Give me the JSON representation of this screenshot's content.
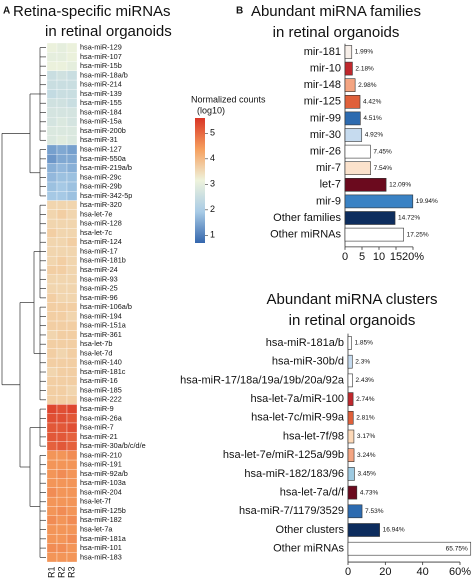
{
  "chart_data": [
    {
      "type": "heatmap",
      "panel_label": "A",
      "title": [
        "Retina-specific miRNAs",
        "in retinal organoids"
      ],
      "rows": [
        "hsa-miR-129",
        "hsa-miR-107",
        "hsa-miR-15b",
        "hsa-miR-18a/b",
        "hsa-miR-214",
        "hsa-miR-139",
        "hsa-miR-155",
        "hsa-miR-184",
        "hsa-miR-15a",
        "hsa-miR-200b",
        "hsa-miR-31",
        "hsa-miR-127",
        "hsa-miR-550a",
        "hsa-miR-219a/b",
        "hsa-miR-29c",
        "hsa-miR-29b",
        "hsa-miR-342-5p",
        "hsa-miR-320",
        "hsa-let-7e",
        "hsa-miR-128",
        "hsa-let-7c",
        "hsa-miR-124",
        "hsa-miR-17",
        "hsa-miR-181b",
        "hsa-miR-24",
        "hsa-miR-93",
        "hsa-miR-25",
        "hsa-miR-96",
        "hsa-miR-106a/b",
        "hsa-miR-194",
        "hsa-miR-151a",
        "hsa-miR-361",
        "hsa-let-7b",
        "hsa-let-7d",
        "hsa-miR-140",
        "hsa-miR-181c",
        "hsa-miR-16",
        "hsa-miR-185",
        "hsa-miR-222",
        "hsa-miR-9",
        "hsa-miR-26a",
        "hsa-miR-7",
        "hsa-miR-21",
        "hsa-miR-30a/b/c/d/e",
        "hsa-miR-210",
        "hsa-miR-191",
        "hsa-miR-92a/b",
        "hsa-miR-103a",
        "hsa-miR-204",
        "hsa-let-7f",
        "hsa-miR-125b",
        "hsa-miR-182",
        "hsa-let-7a",
        "hsa-miR-181a",
        "hsa-miR-101",
        "hsa-miR-183"
      ],
      "columns": [
        "R1",
        "R2",
        "R3"
      ],
      "values": [
        [
          3.1,
          3.0,
          3.1
        ],
        [
          3.0,
          3.0,
          3.1
        ],
        [
          3.1,
          3.1,
          3.0
        ],
        [
          2.5,
          2.6,
          2.5
        ],
        [
          2.5,
          2.5,
          2.5
        ],
        [
          2.4,
          2.5,
          2.5
        ],
        [
          2.6,
          2.6,
          2.5
        ],
        [
          2.7,
          2.7,
          2.7
        ],
        [
          2.7,
          2.8,
          2.7
        ],
        [
          2.8,
          2.8,
          2.8
        ],
        [
          2.8,
          2.9,
          2.8
        ],
        [
          1.4,
          1.5,
          1.4
        ],
        [
          1.3,
          1.5,
          1.5
        ],
        [
          1.6,
          1.7,
          1.6
        ],
        [
          1.7,
          1.8,
          1.8
        ],
        [
          1.8,
          1.9,
          1.8
        ],
        [
          1.9,
          1.9,
          1.8
        ],
        [
          3.6,
          3.6,
          3.6
        ],
        [
          3.6,
          3.7,
          3.6
        ],
        [
          3.6,
          3.6,
          3.6
        ],
        [
          3.7,
          3.6,
          3.6
        ],
        [
          3.6,
          3.6,
          3.7
        ],
        [
          3.6,
          3.6,
          3.6
        ],
        [
          3.6,
          3.7,
          3.6
        ],
        [
          3.7,
          3.7,
          3.6
        ],
        [
          3.6,
          3.6,
          3.6
        ],
        [
          3.6,
          3.6,
          3.6
        ],
        [
          3.7,
          3.6,
          3.6
        ],
        [
          3.7,
          3.7,
          3.7
        ],
        [
          3.7,
          3.7,
          3.6
        ],
        [
          3.7,
          3.7,
          3.7
        ],
        [
          3.6,
          3.7,
          3.7
        ],
        [
          3.7,
          3.7,
          3.7
        ],
        [
          3.7,
          3.6,
          3.7
        ],
        [
          3.7,
          3.7,
          3.7
        ],
        [
          3.6,
          3.7,
          3.7
        ],
        [
          3.7,
          3.7,
          3.7
        ],
        [
          3.7,
          3.7,
          3.6
        ],
        [
          3.7,
          3.7,
          3.7
        ],
        [
          5.4,
          5.3,
          5.4
        ],
        [
          5.3,
          5.3,
          5.2
        ],
        [
          5.2,
          5.2,
          5.3
        ],
        [
          5.2,
          5.2,
          5.1
        ],
        [
          5.1,
          5.2,
          5.1
        ],
        [
          4.5,
          4.5,
          4.6
        ],
        [
          4.5,
          4.5,
          4.5
        ],
        [
          4.5,
          4.6,
          4.5
        ],
        [
          4.5,
          4.5,
          4.5
        ],
        [
          4.6,
          4.5,
          4.5
        ],
        [
          4.5,
          4.5,
          4.5
        ],
        [
          4.5,
          4.6,
          4.5
        ],
        [
          4.6,
          4.5,
          4.6
        ],
        [
          4.5,
          4.5,
          4.5
        ],
        [
          4.5,
          4.5,
          4.6
        ],
        [
          4.6,
          4.6,
          4.5
        ],
        [
          4.5,
          4.5,
          4.5
        ]
      ],
      "colorbar_title": [
        "Normalized counts",
        "(log10)"
      ],
      "zlim": [
        0.7,
        5.6
      ],
      "zticks": [
        1,
        2,
        3,
        4,
        5
      ],
      "colors": [
        "#3466ad",
        "#a8cbe6",
        "#eef3dc",
        "#f6a05e",
        "#d93526"
      ]
    },
    {
      "type": "barh",
      "panel_label": "B",
      "title": [
        "Abundant miRNA families",
        "in retinal organoids"
      ],
      "categories": [
        "mir-181",
        "mir-10",
        "mir-148",
        "mir-125",
        "mir-99",
        "mir-30",
        "mir-26",
        "mir-7",
        "let-7",
        "mir-9",
        "Other families",
        "Other miRNAs"
      ],
      "values": [
        1.99,
        2.18,
        2.98,
        4.42,
        4.51,
        4.92,
        7.45,
        7.54,
        12.09,
        19.94,
        14.72,
        17.25
      ],
      "value_labels": [
        "1.99%",
        "2.18%",
        "2.98%",
        "4.42%",
        "4.51%",
        "4.92%",
        "7.45%",
        "7.54%",
        "12.09%",
        "19.94%",
        "14.72%",
        "17.25%"
      ],
      "colors": [
        "#f7efe9",
        "#c0282d",
        "#f4a582",
        "#e0603a",
        "#2d6bb0",
        "#c6dbef",
        "#ffffff",
        "#fbe2cc",
        "#6b0a1e",
        "#3a82c4",
        "#0d2d5e",
        "#ffffff"
      ],
      "xlim": [
        0,
        20
      ],
      "xticks": [
        0,
        5,
        10,
        15,
        {
          "value": 20,
          "label": "20%"
        }
      ]
    },
    {
      "type": "barh",
      "title": [
        "Abundant miRNA clusters",
        "in retinal organoids"
      ],
      "categories": [
        "hsa-miR-181a/b",
        "hsa-miR-30b/d",
        "hsa-miR-17/18a/19a/19b/20a/92a",
        "hsa-let-7a/miR-100",
        "hsa-let-7c/miR-99a",
        "hsa-let-7f/98",
        "hsa-let-7e/miR-125a/99b",
        "hsa-miR-182/183/96",
        "hsa-let-7a/d/f",
        "hsa-miR-7/1179/3529",
        "Other clusters",
        "Other miRNAs"
      ],
      "values": [
        1.85,
        2.3,
        2.43,
        2.74,
        2.81,
        3.17,
        3.24,
        3.45,
        4.73,
        7.53,
        16.94,
        65.75
      ],
      "value_labels": [
        "1.85%",
        "2.3%",
        "2.43%",
        "2.74%",
        "2.81%",
        "3.17%",
        "3.24%",
        "3.45%",
        "4.73%",
        "7.53%",
        "16.94%",
        "65.75%"
      ],
      "colors": [
        "#ffffff",
        "#c6dbef",
        "#ffffff",
        "#c0282d",
        "#e0603a",
        "#fdd9b8",
        "#f4a582",
        "#9ecae1",
        "#6b0a1e",
        "#2d6bb0",
        "#0d2d5e",
        "#ffffff"
      ],
      "xlim": [
        0,
        60
      ],
      "xticks": [
        0,
        20,
        40,
        {
          "value": 60,
          "label": "60%"
        }
      ]
    }
  ]
}
